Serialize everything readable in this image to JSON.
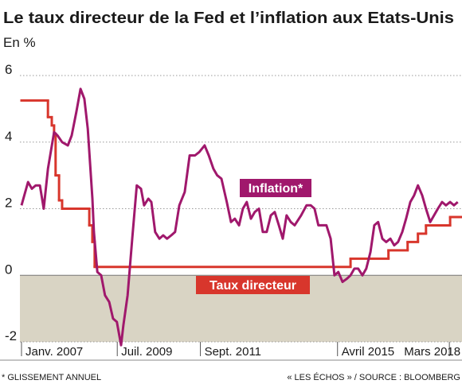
{
  "chart_data": {
    "type": "line",
    "title": "Le taux directeur de la Fed et l’inflation aux Etats-Unis",
    "subtitle": "En %",
    "footnote": "* GLISSEMENT ANNUEL",
    "source": "« LES ÉCHOS » / SOURCE : BLOOMBERG",
    "xlim": [
      2007.0,
      2018.5
    ],
    "xticks": [
      {
        "value": 2007.0,
        "label": "Janv. 2007"
      },
      {
        "value": 2009.5,
        "label": "Juil. 2009"
      },
      {
        "value": 2011.67,
        "label": "Sept. 2011"
      },
      {
        "value": 2015.25,
        "label": "Avril 2015"
      },
      {
        "value": 2018.17,
        "label": "Mars 2018"
      }
    ],
    "ylim": [
      -2,
      6
    ],
    "yticks": [
      -2,
      0,
      2,
      4,
      6
    ],
    "grid": true,
    "negative_shading": "#d9d4c4",
    "series": [
      {
        "name": "Inflation*",
        "color": "#a0186c",
        "x": [
          2007.0,
          2007.17,
          2007.27,
          2007.37,
          2007.48,
          2007.58,
          2007.69,
          2007.85,
          2007.94,
          2008.06,
          2008.21,
          2008.31,
          2008.43,
          2008.54,
          2008.64,
          2008.73,
          2008.85,
          2008.89,
          2008.98,
          2009.08,
          2009.18,
          2009.29,
          2009.39,
          2009.49,
          2009.6,
          2009.66,
          2009.77,
          2009.89,
          2010.01,
          2010.12,
          2010.2,
          2010.31,
          2010.39,
          2010.49,
          2010.6,
          2010.7,
          2010.8,
          2010.91,
          2011.01,
          2011.12,
          2011.26,
          2011.39,
          2011.53,
          2011.64,
          2011.78,
          2011.89,
          2012.01,
          2012.11,
          2012.22,
          2012.36,
          2012.47,
          2012.57,
          2012.68,
          2012.78,
          2012.88,
          2012.99,
          2013.09,
          2013.2,
          2013.3,
          2013.4,
          2013.51,
          2013.61,
          2013.72,
          2013.82,
          2013.92,
          2014.03,
          2014.13,
          2014.3,
          2014.44,
          2014.55,
          2014.65,
          2014.75,
          2014.96,
          2015.07,
          2015.17,
          2015.27,
          2015.38,
          2015.5,
          2015.59,
          2015.69,
          2015.79,
          2015.9,
          2016.0,
          2016.11,
          2016.21,
          2016.31,
          2016.42,
          2016.52,
          2016.63,
          2016.73,
          2016.83,
          2016.94,
          2017.04,
          2017.15,
          2017.25,
          2017.35,
          2017.46,
          2017.56,
          2017.67,
          2017.77,
          2017.87,
          2017.98,
          2018.08,
          2018.19,
          2018.29,
          2018.39
        ],
        "values": [
          2.1,
          2.8,
          2.6,
          2.7,
          2.7,
          2.0,
          3.2,
          4.3,
          4.2,
          4.0,
          3.9,
          4.2,
          4.9,
          5.6,
          5.3,
          4.4,
          2.3,
          1.3,
          0.1,
          0.0,
          -0.6,
          -0.8,
          -1.3,
          -1.4,
          -2.1,
          -1.5,
          -0.6,
          1.1,
          2.7,
          2.6,
          2.1,
          2.3,
          2.2,
          1.3,
          1.1,
          1.2,
          1.1,
          1.2,
          1.3,
          2.1,
          2.5,
          3.6,
          3.6,
          3.7,
          3.9,
          3.6,
          3.2,
          3.0,
          2.9,
          2.2,
          1.6,
          1.7,
          1.5,
          2.0,
          2.2,
          1.7,
          1.9,
          2.0,
          1.3,
          1.3,
          1.8,
          1.9,
          1.5,
          1.1,
          1.8,
          1.6,
          1.5,
          1.8,
          2.1,
          2.1,
          2.0,
          1.5,
          1.5,
          1.1,
          0.0,
          0.1,
          -0.2,
          -0.1,
          0.0,
          0.2,
          0.2,
          0.0,
          0.2,
          0.7,
          1.5,
          1.6,
          1.1,
          1.0,
          1.1,
          0.9,
          1.0,
          1.3,
          1.7,
          2.2,
          2.4,
          2.7,
          2.4,
          2.0,
          1.6,
          1.8,
          2.0,
          2.2,
          2.1,
          2.2,
          2.1,
          2.2
        ]
      },
      {
        "name": "Taux directeur",
        "color": "#d8362c",
        "step": true,
        "x": [
          2007.0,
          2007.69,
          2007.79,
          2007.85,
          2007.89,
          2007.98,
          2008.06,
          2008.77,
          2008.85,
          2008.91,
          2015.59,
          2016.58,
          2017.08,
          2017.35,
          2017.56,
          2018.19
        ],
        "values": [
          5.25,
          4.75,
          4.5,
          4.25,
          3.0,
          2.25,
          2.0,
          1.5,
          1.0,
          0.25,
          0.5,
          0.75,
          1.0,
          1.25,
          1.5,
          1.75
        ]
      }
    ]
  }
}
